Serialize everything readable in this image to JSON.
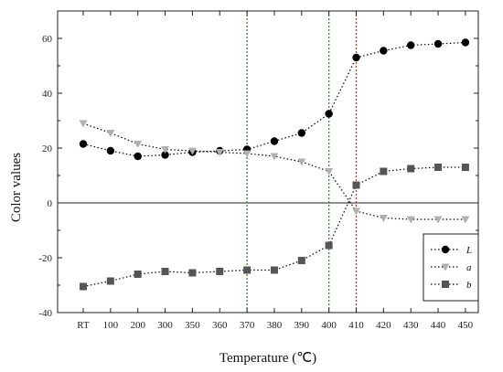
{
  "chart_data": {
    "type": "line",
    "xlabel": "Temperature (℃)",
    "ylabel": "Color values",
    "ylim": [
      -40,
      70
    ],
    "yticks": [
      -40,
      -20,
      0,
      20,
      40,
      60
    ],
    "categories": [
      "RT",
      "100",
      "200",
      "300",
      "350",
      "360",
      "370",
      "380",
      "390",
      "400",
      "410",
      "420",
      "430",
      "440",
      "450"
    ],
    "series": [
      {
        "name": "L",
        "marker": "circle",
        "color": "#000000",
        "values": [
          21.5,
          19.0,
          17.0,
          17.5,
          18.5,
          19.0,
          19.5,
          22.5,
          25.5,
          32.5,
          53.0,
          55.5,
          57.5,
          58.0,
          58.5
        ]
      },
      {
        "name": "a",
        "marker": "triangle-down",
        "color": "#b0b0b0",
        "values": [
          29.0,
          25.5,
          21.5,
          19.5,
          19.0,
          18.5,
          18.0,
          17.0,
          15.0,
          11.5,
          -3.0,
          -5.5,
          -6.0,
          -6.0,
          -6.0
        ]
      },
      {
        "name": "b",
        "marker": "square",
        "color": "#555555",
        "values": [
          -30.5,
          -28.5,
          -26.0,
          -25.0,
          -25.5,
          -25.0,
          -24.5,
          -24.5,
          -21.0,
          -15.5,
          6.5,
          11.5,
          12.5,
          13.0,
          13.0
        ]
      }
    ],
    "vlines": [
      {
        "category": "370",
        "color": "#2e8b2e"
      },
      {
        "category": "400",
        "color": "#2e8b2e"
      },
      {
        "category": "410",
        "color": "#c0392b"
      }
    ],
    "hline": 0,
    "legend_position": "bottom-right",
    "grid": false
  }
}
